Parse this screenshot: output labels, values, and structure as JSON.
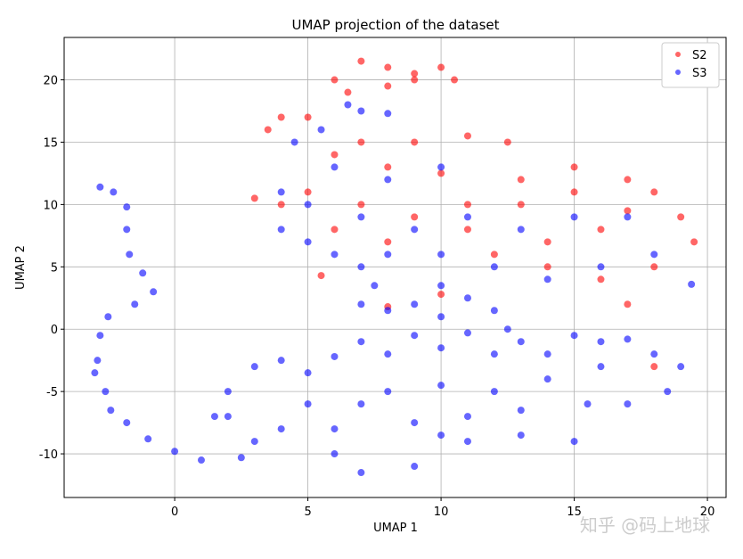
{
  "chart_data": {
    "type": "scatter",
    "title": "UMAP projection of the dataset",
    "x_label": "UMAP 1",
    "y_label": "UMAP 2",
    "xlim": [
      -4.15,
      20.7
    ],
    "ylim": [
      -13.5,
      23.4
    ],
    "xticks": [
      0,
      5,
      10,
      15,
      20
    ],
    "yticks": [
      -10,
      -5,
      0,
      5,
      10,
      15,
      20
    ],
    "grid": true,
    "legend_position": "upper-right",
    "watermark": "知乎 @码上地球",
    "series": [
      {
        "name": "S2",
        "color": "#ff0000",
        "x": [
          6,
          7,
          8,
          9,
          10,
          10.5,
          6.5,
          8,
          9,
          4,
          3.5,
          5,
          7,
          9,
          11,
          12.5,
          6,
          8,
          10,
          13,
          15,
          17,
          18,
          19,
          19.5,
          18,
          16,
          14,
          12,
          11,
          13,
          15,
          17,
          16,
          14,
          3,
          4,
          5,
          7,
          9,
          11,
          5.5,
          8,
          10,
          6,
          8,
          17,
          18
        ],
        "y": [
          20,
          21.5,
          21,
          20.5,
          21,
          20,
          19,
          19.5,
          20,
          17,
          16,
          17,
          15,
          15,
          15.5,
          15,
          14,
          13,
          12.5,
          12,
          13,
          12,
          11,
          9,
          7,
          5,
          4,
          5,
          6,
          8,
          10,
          11,
          9.5,
          8,
          7,
          10.5,
          10,
          11,
          10,
          9,
          10,
          4.3,
          1.8,
          2.8,
          8,
          7,
          2,
          -3
        ]
      },
      {
        "name": "S3",
        "color": "#0000ff",
        "x": [
          -2.8,
          -2.3,
          -1.8,
          -1.8,
          -1.7,
          -1.2,
          -0.8,
          -1.5,
          -2.5,
          -2.8,
          -2.9,
          -3,
          -2.6,
          -2.4,
          -1.8,
          -1,
          0,
          1,
          2.5,
          1.5,
          2,
          3,
          4,
          5,
          6,
          7,
          8,
          9,
          10,
          11,
          12,
          13,
          14,
          15,
          16,
          17,
          18,
          19,
          18.5,
          17,
          15.5,
          15,
          13,
          11,
          10,
          9,
          7,
          6,
          6,
          4,
          3,
          2,
          5,
          8,
          10,
          12,
          14,
          16,
          7,
          11,
          9,
          13,
          7,
          8,
          9,
          10,
          11,
          12,
          12.5,
          7.5,
          10,
          4,
          5,
          6,
          7,
          8,
          10,
          12,
          14,
          16,
          18,
          4,
          5,
          7,
          9,
          11,
          13,
          15,
          17,
          6,
          8,
          10,
          4.5,
          5.5,
          7,
          6.5,
          8,
          19.4
        ],
        "y": [
          11.4,
          11,
          9.8,
          8,
          6,
          4.5,
          3,
          2,
          1,
          -0.5,
          -2.5,
          -3.5,
          -5,
          -6.5,
          -7.5,
          -8.8,
          -9.8,
          -10.5,
          -10.3,
          -7,
          -5,
          -3,
          -2.5,
          -3.5,
          -2.2,
          -1,
          -2,
          -0.5,
          -1.5,
          -0.3,
          -2,
          -1,
          -2,
          -0.5,
          -1,
          -0.8,
          -2,
          -3,
          -5,
          -6,
          -6,
          -9,
          -8.5,
          -9,
          -8.5,
          -11,
          -11.5,
          -10,
          -8,
          -8,
          -9,
          -7,
          -6,
          -5,
          -4.5,
          -5,
          -4,
          -3,
          -6,
          -7,
          -7.5,
          -6.5,
          2,
          1.5,
          2,
          1,
          2.5,
          1.5,
          0,
          3.5,
          3.5,
          8,
          7,
          6,
          5,
          6,
          6,
          5,
          4,
          5,
          6,
          11,
          10,
          9,
          8,
          9,
          8,
          9,
          9,
          13,
          12,
          13,
          15,
          16,
          17.5,
          18,
          17.3,
          3.6
        ]
      }
    ]
  }
}
